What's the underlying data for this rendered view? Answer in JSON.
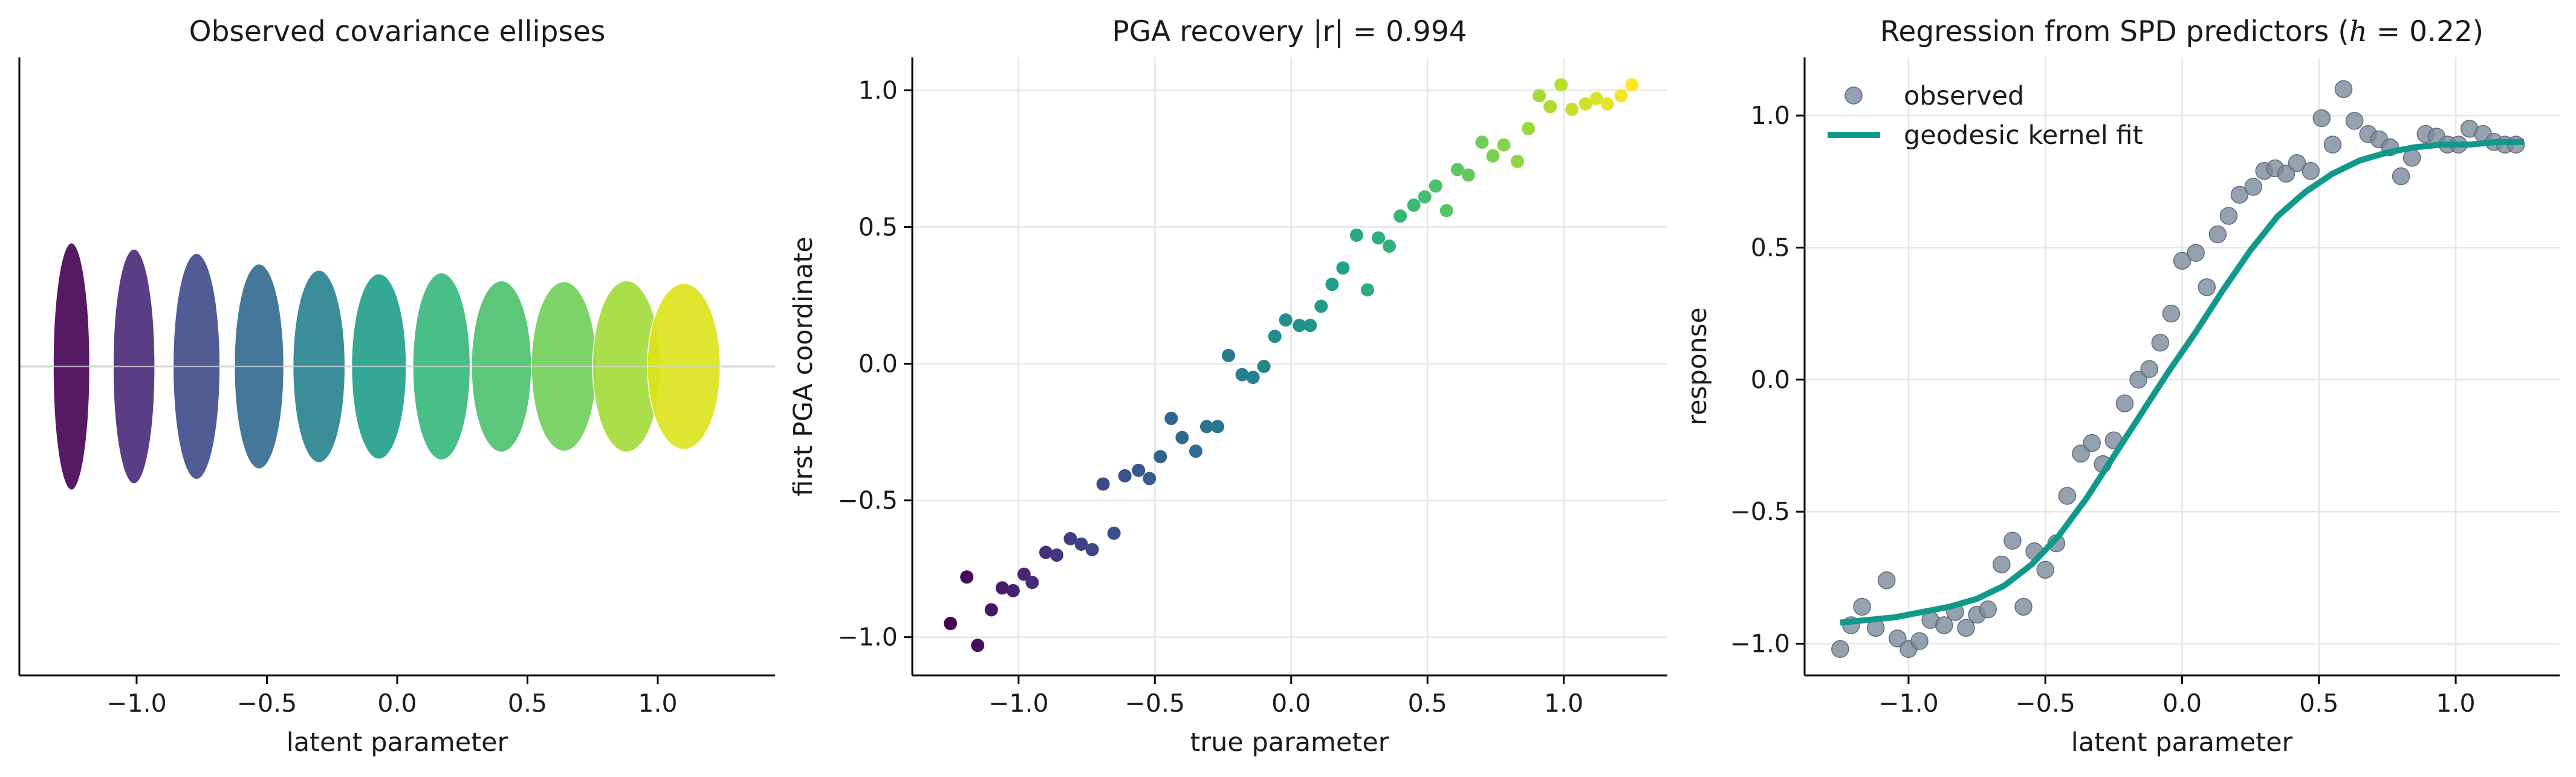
{
  "chart_data": [
    {
      "type": "scatter",
      "title": "Observed covariance ellipses",
      "xlabel": "latent parameter",
      "ylabel": "",
      "xlim": [
        -1.45,
        1.45
      ],
      "xticks": [
        -1.0,
        -0.5,
        0.0,
        0.5,
        1.0
      ],
      "xtick_labels": [
        "−1.0",
        "−0.5",
        "0.0",
        "0.5",
        "1.0"
      ],
      "ylim": [
        -1.75,
        1.75
      ],
      "grid": false,
      "reference_line_y": 0,
      "colormap": "viridis",
      "ellipses": [
        {
          "x": -1.25,
          "width": 0.14,
          "height": 1.4,
          "color": "#440154"
        },
        {
          "x": -1.01,
          "width": 0.16,
          "height": 1.33,
          "color": "#482878"
        },
        {
          "x": -0.77,
          "width": 0.18,
          "height": 1.28,
          "color": "#3e4a89"
        },
        {
          "x": -0.53,
          "width": 0.19,
          "height": 1.16,
          "color": "#31688e"
        },
        {
          "x": -0.3,
          "width": 0.2,
          "height": 1.09,
          "color": "#26828e"
        },
        {
          "x": -0.07,
          "width": 0.21,
          "height": 1.05,
          "color": "#1f9e89"
        },
        {
          "x": 0.17,
          "width": 0.22,
          "height": 1.06,
          "color": "#35b779"
        },
        {
          "x": 0.4,
          "width": 0.23,
          "height": 0.97,
          "color": "#4ac16d"
        },
        {
          "x": 0.64,
          "width": 0.25,
          "height": 0.96,
          "color": "#6ece58"
        },
        {
          "x": 0.88,
          "width": 0.26,
          "height": 0.97,
          "color": "#a2da37"
        },
        {
          "x": 1.1,
          "width": 0.28,
          "height": 0.94,
          "color": "#dde318"
        }
      ]
    },
    {
      "type": "scatter",
      "title": "PGA recovery  |r| = 0.994",
      "xlabel": "true parameter",
      "ylabel": "first PGA coordinate",
      "xlim": [
        -1.39,
        1.38
      ],
      "ylim": [
        -1.14,
        1.12
      ],
      "xticks": [
        -1.0,
        -0.5,
        0.0,
        0.5,
        1.0
      ],
      "xtick_labels": [
        "−1.0",
        "−0.5",
        "0.0",
        "0.5",
        "1.0"
      ],
      "yticks": [
        -1.0,
        -0.5,
        0.0,
        0.5,
        1.0
      ],
      "ytick_labels": [
        "−1.0",
        "−0.5",
        "0.0",
        "0.5",
        "1.0"
      ],
      "grid": true,
      "colormap": "viridis",
      "x": [
        -1.25,
        -1.19,
        -1.15,
        -1.1,
        -1.06,
        -1.02,
        -0.98,
        -0.95,
        -0.9,
        -0.86,
        -0.81,
        -0.77,
        -0.73,
        -0.69,
        -0.65,
        -0.61,
        -0.56,
        -0.52,
        -0.48,
        -0.44,
        -0.4,
        -0.35,
        -0.31,
        -0.27,
        -0.23,
        -0.18,
        -0.14,
        -0.1,
        -0.06,
        -0.02,
        0.03,
        0.07,
        0.11,
        0.15,
        0.19,
        0.24,
        0.28,
        0.32,
        0.36,
        0.4,
        0.45,
        0.49,
        0.53,
        0.57,
        0.61,
        0.65,
        0.7,
        0.74,
        0.78,
        0.83,
        0.87,
        0.91,
        0.95,
        0.99,
        1.03,
        1.08,
        1.12,
        1.16,
        1.21,
        1.25
      ],
      "y": [
        -0.95,
        -0.78,
        -1.03,
        -0.9,
        -0.82,
        -0.83,
        -0.77,
        -0.8,
        -0.69,
        -0.7,
        -0.64,
        -0.66,
        -0.68,
        -0.44,
        -0.62,
        -0.41,
        -0.39,
        -0.42,
        -0.34,
        -0.2,
        -0.27,
        -0.32,
        -0.23,
        -0.23,
        0.03,
        -0.04,
        -0.05,
        -0.01,
        0.1,
        0.16,
        0.14,
        0.14,
        0.21,
        0.29,
        0.35,
        0.47,
        0.27,
        0.46,
        0.43,
        0.54,
        0.58,
        0.61,
        0.65,
        0.56,
        0.71,
        0.69,
        0.81,
        0.76,
        0.8,
        0.74,
        0.86,
        0.98,
        0.94,
        1.02,
        0.93,
        0.95,
        0.97,
        0.95,
        0.98,
        1.02
      ]
    },
    {
      "type": "scatter",
      "title": "Regression from SPD predictors  (h = 0.22)",
      "xlabel": "latent parameter",
      "ylabel": "response",
      "xlim": [
        -1.38,
        1.38
      ],
      "ylim": [
        -1.12,
        1.22
      ],
      "xticks": [
        -1.0,
        -0.5,
        0.0,
        0.5,
        1.0
      ],
      "xtick_labels": [
        "−1.0",
        "−0.5",
        "0.0",
        "0.5",
        "1.0"
      ],
      "yticks": [
        -1.0,
        -0.5,
        0.0,
        0.5,
        1.0
      ],
      "ytick_labels": [
        "−1.0",
        "−0.5",
        "0.0",
        "0.5",
        "1.0"
      ],
      "grid": true,
      "legend": {
        "position": "top-left",
        "entries": [
          "observed",
          "geodesic kernel fit"
        ]
      },
      "series": [
        {
          "name": "observed",
          "kind": "scatter",
          "color": "#7c899b",
          "x": [
            -1.25,
            -1.21,
            -1.17,
            -1.12,
            -1.08,
            -1.04,
            -1.0,
            -0.96,
            -0.92,
            -0.87,
            -0.83,
            -0.79,
            -0.75,
            -0.71,
            -0.66,
            -0.62,
            -0.58,
            -0.54,
            -0.5,
            -0.46,
            -0.42,
            -0.37,
            -0.33,
            -0.29,
            -0.25,
            -0.21,
            -0.16,
            -0.12,
            -0.08,
            -0.04,
            0.0,
            0.05,
            0.09,
            0.13,
            0.17,
            0.21,
            0.26,
            0.3,
            0.34,
            0.38,
            0.42,
            0.47,
            0.51,
            0.55,
            0.59,
            0.63,
            0.68,
            0.72,
            0.76,
            0.8,
            0.84,
            0.89,
            0.93,
            0.97,
            1.01,
            1.05,
            1.1,
            1.14,
            1.18,
            1.22
          ],
          "y": [
            -1.02,
            -0.93,
            -0.86,
            -0.94,
            -0.76,
            -0.98,
            -1.02,
            -0.99,
            -0.91,
            -0.93,
            -0.88,
            -0.94,
            -0.89,
            -0.87,
            -0.7,
            -0.61,
            -0.86,
            -0.65,
            -0.72,
            -0.62,
            -0.44,
            -0.28,
            -0.24,
            -0.32,
            -0.23,
            -0.09,
            0.0,
            0.04,
            0.14,
            0.25,
            0.45,
            0.48,
            0.35,
            0.55,
            0.62,
            0.7,
            0.73,
            0.79,
            0.8,
            0.78,
            0.82,
            0.79,
            0.99,
            0.89,
            1.1,
            0.98,
            0.93,
            0.91,
            0.88,
            0.77,
            0.84,
            0.93,
            0.92,
            0.89,
            0.89,
            0.95,
            0.93,
            0.9,
            0.89,
            0.89
          ]
        },
        {
          "name": "geodesic kernel fit",
          "kind": "line",
          "color": "#10998a",
          "x": [
            -1.25,
            -1.15,
            -1.05,
            -0.95,
            -0.85,
            -0.75,
            -0.65,
            -0.55,
            -0.45,
            -0.35,
            -0.25,
            -0.15,
            -0.05,
            0.05,
            0.15,
            0.25,
            0.35,
            0.45,
            0.55,
            0.65,
            0.75,
            0.85,
            0.95,
            1.05,
            1.15,
            1.25
          ],
          "y": [
            -0.92,
            -0.91,
            -0.9,
            -0.88,
            -0.86,
            -0.83,
            -0.78,
            -0.7,
            -0.59,
            -0.45,
            -0.29,
            -0.13,
            0.03,
            0.18,
            0.34,
            0.49,
            0.62,
            0.71,
            0.78,
            0.83,
            0.86,
            0.88,
            0.89,
            0.89,
            0.9,
            0.9
          ]
        }
      ]
    }
  ]
}
